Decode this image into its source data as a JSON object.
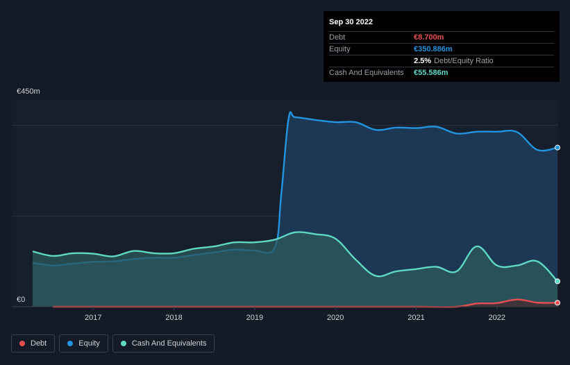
{
  "chart_data": {
    "type": "area",
    "title": "",
    "y_unit_labels": {
      "top": "€450m",
      "bottom": "€0"
    },
    "ylim": [
      0,
      450
    ],
    "xlim": [
      2016.25,
      2022.75
    ],
    "x_ticks": [
      {
        "value": 2017,
        "label": "2017"
      },
      {
        "value": 2018,
        "label": "2018"
      },
      {
        "value": 2019,
        "label": "2019"
      },
      {
        "value": 2020,
        "label": "2020"
      },
      {
        "value": 2021,
        "label": "2021"
      },
      {
        "value": 2022,
        "label": "2022"
      }
    ],
    "gridlines": [
      200,
      400
    ],
    "series": [
      {
        "name": "Equity",
        "color": "#2394df",
        "fill": "#1d4263",
        "points": [
          [
            2016.25,
            97
          ],
          [
            2016.5,
            91
          ],
          [
            2016.75,
            95
          ],
          [
            2017.0,
            99
          ],
          [
            2017.25,
            100
          ],
          [
            2017.5,
            105
          ],
          [
            2017.75,
            108
          ],
          [
            2018.0,
            108
          ],
          [
            2018.25,
            114
          ],
          [
            2018.5,
            120
          ],
          [
            2018.75,
            126
          ],
          [
            2019.0,
            124
          ],
          [
            2019.25,
            130
          ],
          [
            2019.33,
            250
          ],
          [
            2019.42,
            415
          ],
          [
            2019.5,
            418
          ],
          [
            2019.75,
            412
          ],
          [
            2020.0,
            407
          ],
          [
            2020.25,
            407
          ],
          [
            2020.5,
            390
          ],
          [
            2020.75,
            395
          ],
          [
            2021.0,
            394
          ],
          [
            2021.25,
            397
          ],
          [
            2021.5,
            382
          ],
          [
            2021.75,
            386
          ],
          [
            2022.0,
            386
          ],
          [
            2022.25,
            385
          ],
          [
            2022.5,
            346
          ],
          [
            2022.75,
            351
          ]
        ]
      },
      {
        "name": "Cash And Equivalents",
        "color": "#5fd8c4",
        "fill": "#2c5a5b",
        "points": [
          [
            2016.25,
            122
          ],
          [
            2016.5,
            112
          ],
          [
            2016.75,
            118
          ],
          [
            2017.0,
            117
          ],
          [
            2017.25,
            111
          ],
          [
            2017.5,
            123
          ],
          [
            2017.75,
            118
          ],
          [
            2018.0,
            118
          ],
          [
            2018.25,
            128
          ],
          [
            2018.5,
            133
          ],
          [
            2018.75,
            142
          ],
          [
            2019.0,
            142
          ],
          [
            2019.25,
            148
          ],
          [
            2019.5,
            164
          ],
          [
            2019.75,
            160
          ],
          [
            2020.0,
            150
          ],
          [
            2020.25,
            104
          ],
          [
            2020.5,
            68
          ],
          [
            2020.75,
            78
          ],
          [
            2021.0,
            83
          ],
          [
            2021.25,
            88
          ],
          [
            2021.5,
            78
          ],
          [
            2021.75,
            133
          ],
          [
            2022.0,
            91
          ],
          [
            2022.25,
            91
          ],
          [
            2022.5,
            100
          ],
          [
            2022.75,
            56
          ]
        ]
      },
      {
        "name": "Debt",
        "color": "#e84f52",
        "fill": "#4a2a30",
        "points": [
          [
            2016.5,
            0
          ],
          [
            2017.0,
            0
          ],
          [
            2018.0,
            0
          ],
          [
            2019.0,
            0
          ],
          [
            2020.0,
            0
          ],
          [
            2021.0,
            0
          ],
          [
            2021.5,
            0
          ],
          [
            2021.75,
            7
          ],
          [
            2022.0,
            8
          ],
          [
            2022.25,
            16
          ],
          [
            2022.5,
            9
          ],
          [
            2022.75,
            8.7
          ]
        ]
      }
    ],
    "tooltip": {
      "date": "Sep 30 2022",
      "rows": [
        {
          "label": "Debt",
          "value": "€8.700m",
          "color": "#e84f52"
        },
        {
          "label": "Equity",
          "value": "€350.886m",
          "color": "#2394df"
        },
        {
          "label": "",
          "value": "2.5%",
          "suffix": "Debt/Equity Ratio",
          "color": "#ffffff"
        },
        {
          "label": "Cash And Equivalents",
          "value": "€55.586m",
          "color": "#5fd8c4"
        }
      ]
    },
    "legend": [
      {
        "label": "Debt",
        "color": "#e84f52"
      },
      {
        "label": "Equity",
        "color": "#2394df"
      },
      {
        "label": "Cash And Equivalents",
        "color": "#5fd8c4"
      }
    ]
  }
}
